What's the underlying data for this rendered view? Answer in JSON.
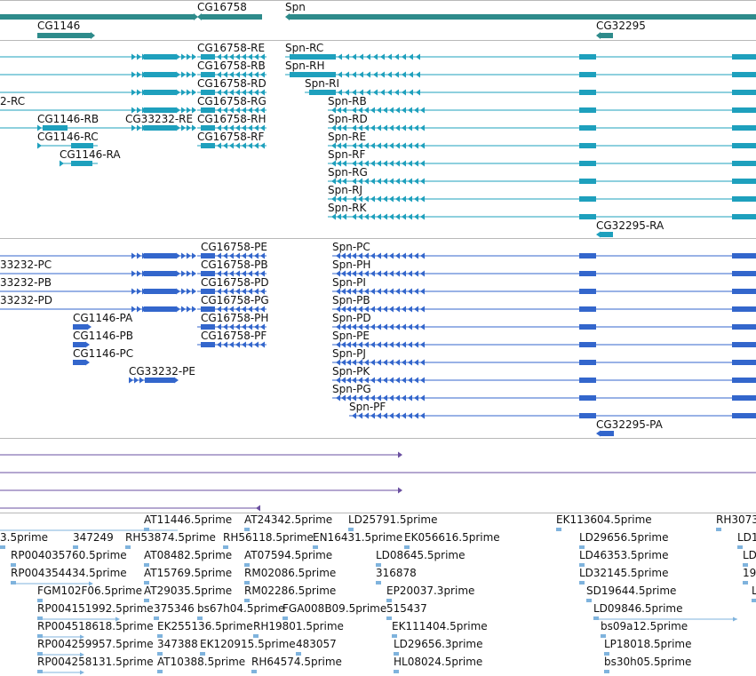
{
  "colors": {
    "gene": "#2e8b8b",
    "mrna": "#1ea0bd",
    "cds": "#3366cc",
    "ncrna": "#6a4fa0",
    "est": "#7fb3dd",
    "divider": "#b8b8b8"
  },
  "genes": [
    {
      "label": "CG16758"
    },
    {
      "label": "Spn"
    },
    {
      "label": "CG1146"
    },
    {
      "label": "CG32295"
    }
  ],
  "mrna_left": [
    {
      "label": "CG16758-RE"
    },
    {
      "label": "CG16758-RB"
    },
    {
      "label": "CG16758-RD"
    },
    {
      "label": "CG16758-RG"
    },
    {
      "label": "CG16758-RH"
    },
    {
      "label": "CG16758-RF"
    },
    {
      "label": "2-RC"
    },
    {
      "label": "CG1146-RB"
    },
    {
      "label": "CG1146-RC"
    },
    {
      "label": "CG1146-RA"
    },
    {
      "label": "CG33232-RE"
    }
  ],
  "mrna_spn": [
    {
      "label": "Spn-RC"
    },
    {
      "label": "Spn-RH"
    },
    {
      "label": "Spn-RI"
    },
    {
      "label": "Spn-RB"
    },
    {
      "label": "Spn-RD"
    },
    {
      "label": "Spn-RE"
    },
    {
      "label": "Spn-RF"
    },
    {
      "label": "Spn-RG"
    },
    {
      "label": "Spn-RJ"
    },
    {
      "label": "Spn-RK"
    },
    {
      "label": "CG32295-RA"
    }
  ],
  "cds_left": [
    {
      "label": "CG16758-PE"
    },
    {
      "label": "CG16758-PB"
    },
    {
      "label": "CG16758-PD"
    },
    {
      "label": "CG16758-PG"
    },
    {
      "label": "CG16758-PH"
    },
    {
      "label": "CG16758-PF"
    },
    {
      "label": "33232-PC"
    },
    {
      "label": "33232-PB"
    },
    {
      "label": "33232-PD"
    },
    {
      "label": "CG1146-PA"
    },
    {
      "label": "CG1146-PB"
    },
    {
      "label": "CG1146-PC"
    },
    {
      "label": "CG33232-PE"
    }
  ],
  "cds_spn": [
    {
      "label": "Spn-PC"
    },
    {
      "label": "Spn-PH"
    },
    {
      "label": "Spn-PI"
    },
    {
      "label": "Spn-PB"
    },
    {
      "label": "Spn-PD"
    },
    {
      "label": "Spn-PE"
    },
    {
      "label": "Spn-PJ"
    },
    {
      "label": "Spn-PK"
    },
    {
      "label": "Spn-PG"
    },
    {
      "label": "Spn-PF"
    },
    {
      "label": "CG32295-PA"
    }
  ],
  "ests": [
    {
      "label": "AT11446.5prime"
    },
    {
      "label": "AT24342.5prime"
    },
    {
      "label": "LD25791.5prime"
    },
    {
      "label": "EK113604.5prime"
    },
    {
      "label": "RH3073"
    },
    {
      "label": "3.5prime"
    },
    {
      "label": "347249"
    },
    {
      "label": "RH53874.5prime"
    },
    {
      "label": "RH56118.5prime"
    },
    {
      "label": "EN16431.5prime"
    },
    {
      "label": "EK056616.5prime"
    },
    {
      "label": "LD29656.5prime"
    },
    {
      "label": "LD1"
    },
    {
      "label": "RP004035760.5prime"
    },
    {
      "label": "AT08482.5prime"
    },
    {
      "label": "AT07594.5prime"
    },
    {
      "label": "LD08645.5prime"
    },
    {
      "label": "LD46353.5prime"
    },
    {
      "label": "LD"
    },
    {
      "label": "RP004354434.5prime"
    },
    {
      "label": "AT15769.5prime"
    },
    {
      "label": "RM02086.5prime"
    },
    {
      "label": "316878"
    },
    {
      "label": "LD32145.5prime"
    },
    {
      "label": "19"
    },
    {
      "label": "FGM102F06.5prime"
    },
    {
      "label": "AT29035.5prime"
    },
    {
      "label": "RM02286.5prime"
    },
    {
      "label": "EP20037.3prime"
    },
    {
      "label": "SD19644.5prime"
    },
    {
      "label": "L"
    },
    {
      "label": "RP004151992.5prime"
    },
    {
      "label": "375346"
    },
    {
      "label": "bs67h04.5prime"
    },
    {
      "label": "FGA008B09.5prime"
    },
    {
      "label": "515437"
    },
    {
      "label": "LD09846.5prime"
    },
    {
      "label": "RP004518618.5prime"
    },
    {
      "label": "EK255136.5prime"
    },
    {
      "label": "RH19801.5prime"
    },
    {
      "label": "EK111404.5prime"
    },
    {
      "label": "bs09a12.5prime"
    },
    {
      "label": "RP004259957.5prime"
    },
    {
      "label": "347388"
    },
    {
      "label": "EK120915.5prime"
    },
    {
      "label": "483057"
    },
    {
      "label": "LD29656.3prime"
    },
    {
      "label": "LP18018.5prime"
    },
    {
      "label": "RP004258131.5prime"
    },
    {
      "label": "AT10388.5prime"
    },
    {
      "label": "RH64574.5prime"
    },
    {
      "label": "HL08024.5prime"
    },
    {
      "label": "bs30h05.5prime"
    }
  ]
}
